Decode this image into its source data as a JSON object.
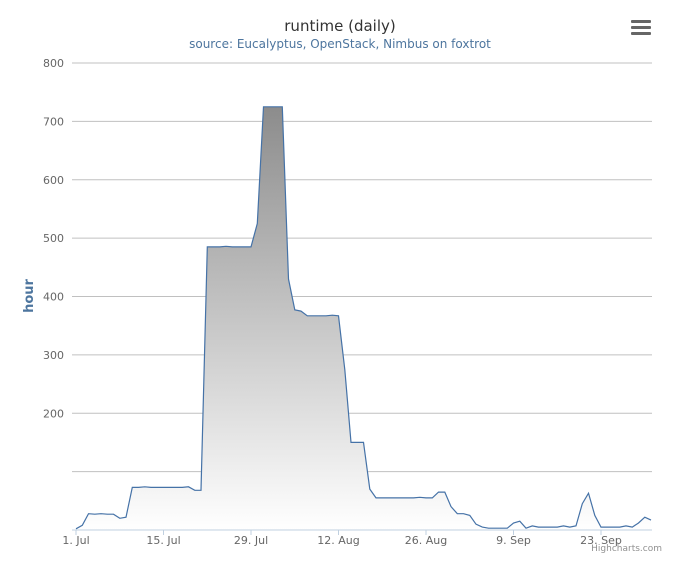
{
  "chart_data": {
    "type": "area",
    "title": "runtime (daily)",
    "subtitle": "source: Eucalyptus, OpenStack, Nimbus on foxtrot",
    "ylabel": "hour",
    "xlabel": "",
    "ylim": [
      0,
      800
    ],
    "yticks": [
      200,
      300,
      400,
      500,
      600,
      700,
      800
    ],
    "xlim": [
      "2013-07-01",
      "2013-09-30"
    ],
    "xticks": [
      {
        "date": "2013-07-01",
        "label": "1. Jul"
      },
      {
        "date": "2013-07-15",
        "label": "15. Jul"
      },
      {
        "date": "2013-07-29",
        "label": "29. Jul"
      },
      {
        "date": "2013-08-12",
        "label": "12. Aug"
      },
      {
        "date": "2013-08-26",
        "label": "26. Aug"
      },
      {
        "date": "2013-09-09",
        "label": "9. Sep"
      },
      {
        "date": "2013-09-23",
        "label": "23. Sep"
      }
    ],
    "grid": true,
    "legend": "none",
    "line_color": "#4572a7",
    "fill_top_color": "#8c8c8c",
    "fill_bottom_color": "#ffffff",
    "series": [
      {
        "points": [
          [
            "2013-07-01",
            2
          ],
          [
            "2013-07-02",
            8
          ],
          [
            "2013-07-03",
            28
          ],
          [
            "2013-07-04",
            27
          ],
          [
            "2013-07-05",
            28
          ],
          [
            "2013-07-06",
            27
          ],
          [
            "2013-07-07",
            27
          ],
          [
            "2013-07-08",
            20
          ],
          [
            "2013-07-09",
            22
          ],
          [
            "2013-07-10",
            73
          ],
          [
            "2013-07-11",
            73
          ],
          [
            "2013-07-12",
            74
          ],
          [
            "2013-07-13",
            73
          ],
          [
            "2013-07-14",
            73
          ],
          [
            "2013-07-15",
            73
          ],
          [
            "2013-07-16",
            73
          ],
          [
            "2013-07-17",
            73
          ],
          [
            "2013-07-18",
            73
          ],
          [
            "2013-07-19",
            74
          ],
          [
            "2013-07-20",
            68
          ],
          [
            "2013-07-21",
            68
          ],
          [
            "2013-07-22",
            485
          ],
          [
            "2013-07-23",
            485
          ],
          [
            "2013-07-24",
            485
          ],
          [
            "2013-07-25",
            486
          ],
          [
            "2013-07-26",
            485
          ],
          [
            "2013-07-27",
            485
          ],
          [
            "2013-07-28",
            485
          ],
          [
            "2013-07-29",
            485
          ],
          [
            "2013-07-30",
            525
          ],
          [
            "2013-07-31",
            725
          ],
          [
            "2013-08-01",
            725
          ],
          [
            "2013-08-02",
            725
          ],
          [
            "2013-08-03",
            725
          ],
          [
            "2013-08-04",
            430
          ],
          [
            "2013-08-05",
            377
          ],
          [
            "2013-08-06",
            375
          ],
          [
            "2013-08-07",
            367
          ],
          [
            "2013-08-08",
            367
          ],
          [
            "2013-08-09",
            367
          ],
          [
            "2013-08-10",
            367
          ],
          [
            "2013-08-11",
            368
          ],
          [
            "2013-08-12",
            367
          ],
          [
            "2013-08-13",
            275
          ],
          [
            "2013-08-14",
            150
          ],
          [
            "2013-08-15",
            150
          ],
          [
            "2013-08-16",
            150
          ],
          [
            "2013-08-17",
            70
          ],
          [
            "2013-08-18",
            55
          ],
          [
            "2013-08-19",
            55
          ],
          [
            "2013-08-20",
            55
          ],
          [
            "2013-08-21",
            55
          ],
          [
            "2013-08-22",
            55
          ],
          [
            "2013-08-23",
            55
          ],
          [
            "2013-08-24",
            55
          ],
          [
            "2013-08-25",
            56
          ],
          [
            "2013-08-26",
            55
          ],
          [
            "2013-08-27",
            55
          ],
          [
            "2013-08-28",
            65
          ],
          [
            "2013-08-29",
            65
          ],
          [
            "2013-08-30",
            40
          ],
          [
            "2013-08-31",
            28
          ],
          [
            "2013-09-01",
            28
          ],
          [
            "2013-09-02",
            25
          ],
          [
            "2013-09-03",
            10
          ],
          [
            "2013-09-04",
            5
          ],
          [
            "2013-09-05",
            3
          ],
          [
            "2013-09-06",
            3
          ],
          [
            "2013-09-07",
            3
          ],
          [
            "2013-09-08",
            3
          ],
          [
            "2013-09-09",
            12
          ],
          [
            "2013-09-10",
            15
          ],
          [
            "2013-09-11",
            3
          ],
          [
            "2013-09-12",
            7
          ],
          [
            "2013-09-13",
            5
          ],
          [
            "2013-09-14",
            5
          ],
          [
            "2013-09-15",
            5
          ],
          [
            "2013-09-16",
            5
          ],
          [
            "2013-09-17",
            7
          ],
          [
            "2013-09-18",
            5
          ],
          [
            "2013-09-19",
            7
          ],
          [
            "2013-09-20",
            45
          ],
          [
            "2013-09-21",
            63
          ],
          [
            "2013-09-22",
            25
          ],
          [
            "2013-09-23",
            5
          ],
          [
            "2013-09-24",
            5
          ],
          [
            "2013-09-25",
            5
          ],
          [
            "2013-09-26",
            5
          ],
          [
            "2013-09-27",
            7
          ],
          [
            "2013-09-28",
            5
          ],
          [
            "2013-09-29",
            12
          ],
          [
            "2013-09-30",
            22
          ],
          [
            "2013-10-01",
            17
          ]
        ]
      }
    ]
  },
  "credits": "Highcharts.com"
}
